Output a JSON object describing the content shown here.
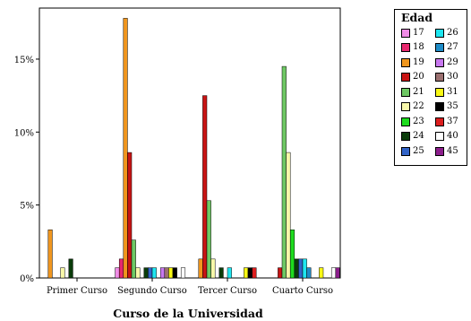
{
  "chart_data": {
    "type": "bar",
    "title": "",
    "xlabel": "Curso de la Universidad",
    "ylabel": "",
    "ylim": [
      0,
      18.5
    ],
    "yticks": [
      "0%",
      "5%",
      "10%",
      "15%"
    ],
    "ytick_values": [
      0,
      5,
      10,
      15
    ],
    "grid": false,
    "legend_title": "Edad",
    "legend_position": "right",
    "categories": [
      "Primer Curso",
      "Segundo Curso",
      "Tercer Curso",
      "Cuarto Curso"
    ],
    "series": [
      {
        "name": "17",
        "color": "#f08ce6",
        "values": [
          0,
          0.7,
          0,
          0
        ]
      },
      {
        "name": "18",
        "color": "#e8286e",
        "values": [
          0,
          1.3,
          0,
          0
        ]
      },
      {
        "name": "19",
        "color": "#f0961e",
        "values": [
          3.3,
          17.8,
          1.3,
          0
        ]
      },
      {
        "name": "20",
        "color": "#c81414",
        "values": [
          0,
          8.6,
          12.5,
          0.7
        ]
      },
      {
        "name": "21",
        "color": "#6ec864",
        "values": [
          0,
          2.6,
          5.3,
          14.5
        ]
      },
      {
        "name": "22",
        "color": "#f8f8aa",
        "values": [
          0.7,
          0.7,
          1.3,
          8.6
        ]
      },
      {
        "name": "23",
        "color": "#1edc1e",
        "values": [
          0,
          0,
          0,
          3.3
        ]
      },
      {
        "name": "24",
        "color": "#0a3c0a",
        "values": [
          1.3,
          0.7,
          0.7,
          1.3
        ]
      },
      {
        "name": "25",
        "color": "#3264c8",
        "values": [
          0,
          0.7,
          0,
          1.3
        ]
      },
      {
        "name": "26",
        "color": "#1ee6f0",
        "values": [
          0,
          0.7,
          0.7,
          1.3
        ]
      },
      {
        "name": "27",
        "color": "#1e8cc8",
        "values": [
          0,
          0,
          0,
          0.7
        ]
      },
      {
        "name": "29",
        "color": "#c878f0",
        "values": [
          0,
          0.7,
          0,
          0
        ]
      },
      {
        "name": "30",
        "color": "#9b7070",
        "values": [
          0,
          0.7,
          0,
          0
        ]
      },
      {
        "name": "31",
        "color": "#f8f814",
        "values": [
          0,
          0.7,
          0.7,
          0.7
        ]
      },
      {
        "name": "35",
        "color": "#000000",
        "values": [
          0,
          0.7,
          0.7,
          0
        ]
      },
      {
        "name": "37",
        "color": "#dc1e1e",
        "values": [
          0,
          0,
          0.7,
          0
        ]
      },
      {
        "name": "40",
        "color": "#ffffff",
        "values": [
          0,
          0.7,
          0,
          0.7
        ]
      },
      {
        "name": "45",
        "color": "#8c1e8c",
        "values": [
          0,
          0,
          0,
          0.7
        ]
      }
    ]
  }
}
